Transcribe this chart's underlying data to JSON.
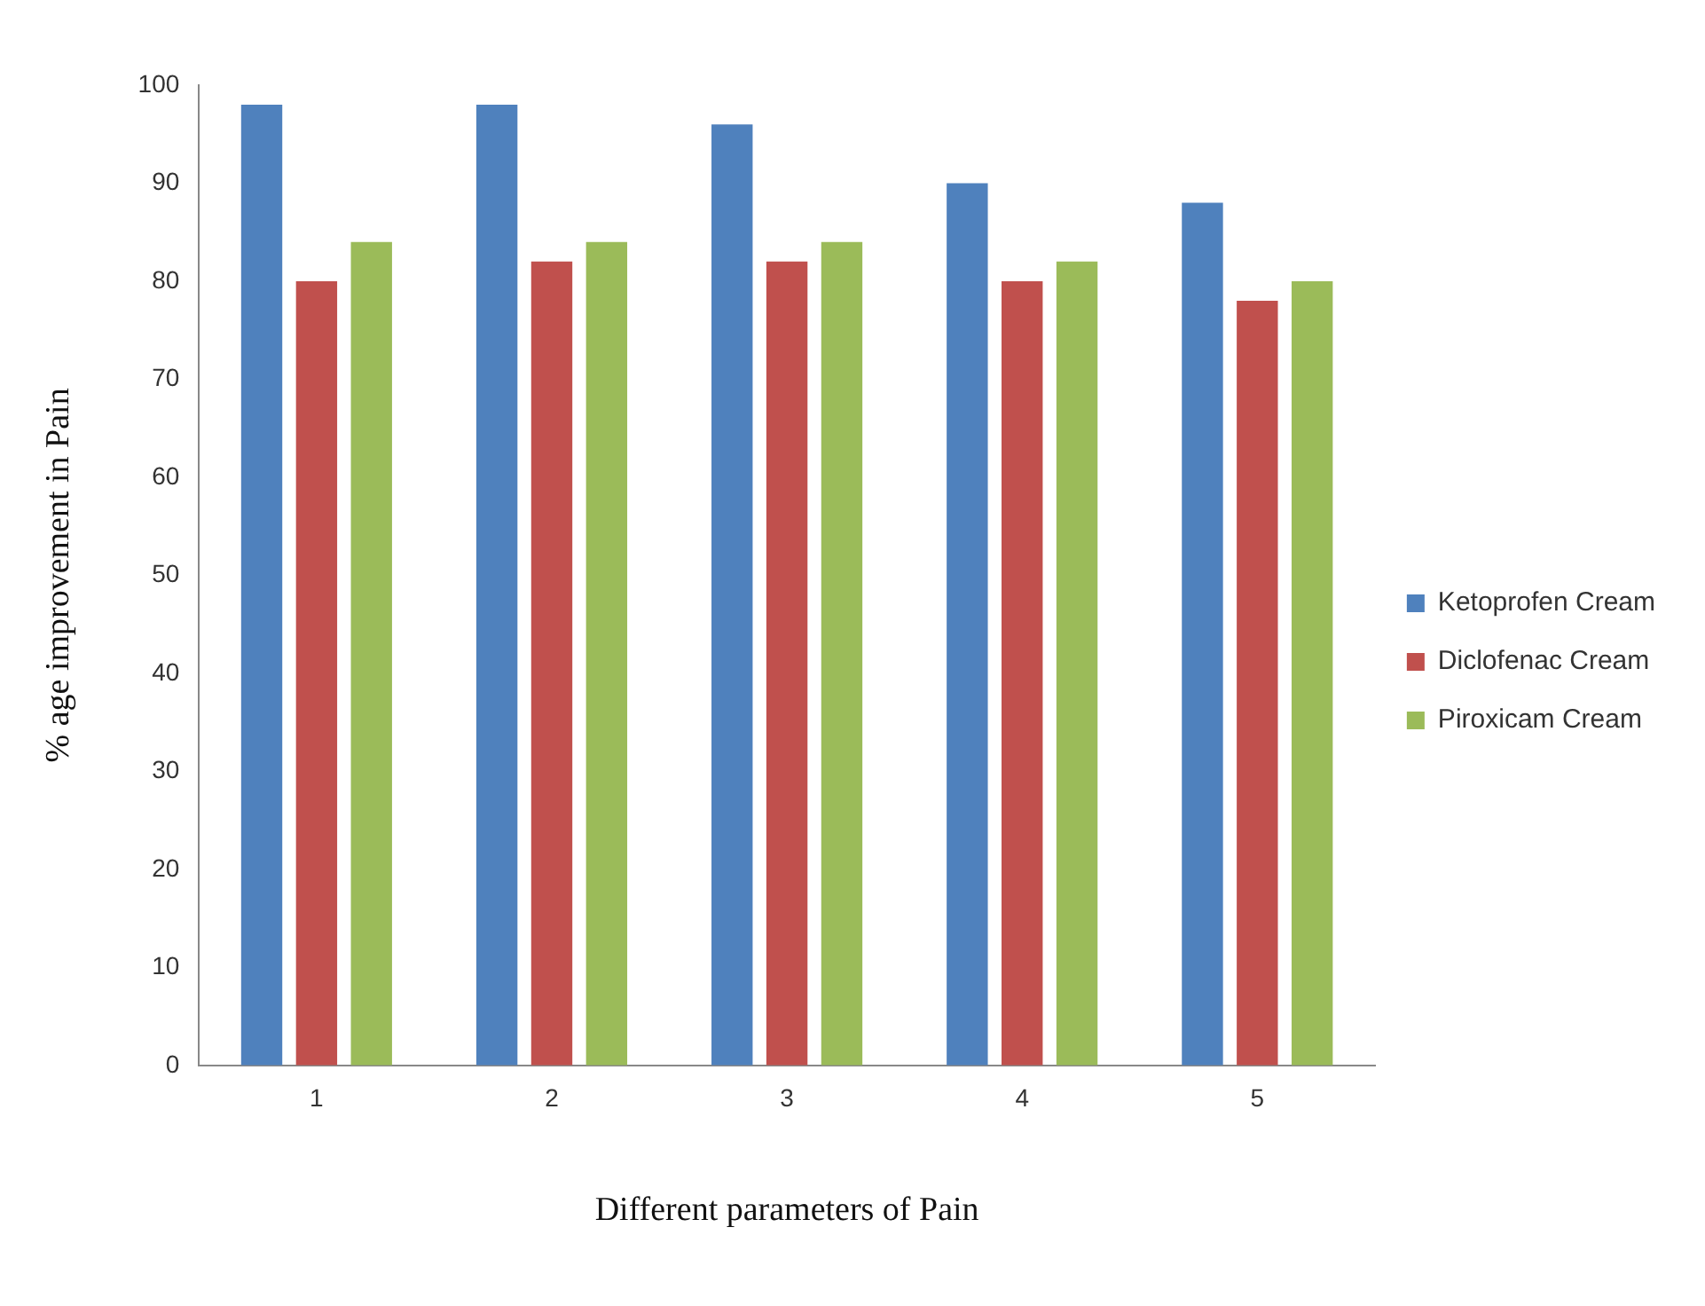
{
  "chart_data": {
    "type": "bar",
    "xlabel": "Different parameters of Pain",
    "ylabel": "% age improvement in Pain",
    "categories": [
      "1",
      "2",
      "3",
      "4",
      "5"
    ],
    "series": [
      {
        "name": "Ketoprofen Cream",
        "color": "#4f81bd",
        "values": [
          98,
          98,
          96,
          90,
          88
        ]
      },
      {
        "name": "Diclofenac Cream",
        "color": "#c0504d",
        "values": [
          80,
          82,
          82,
          80,
          78
        ]
      },
      {
        "name": "Piroxicam Cream",
        "color": "#9bbb59",
        "values": [
          84,
          84,
          84,
          82,
          80
        ]
      }
    ],
    "ylim": [
      0,
      100
    ],
    "yticks": [
      0,
      10,
      20,
      30,
      40,
      50,
      60,
      70,
      80,
      90,
      100
    ],
    "grid": false,
    "legend": "right"
  }
}
